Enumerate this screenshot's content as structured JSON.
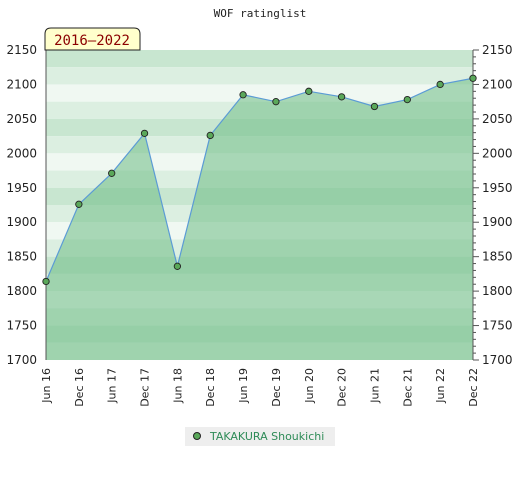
{
  "chart_data": {
    "type": "area",
    "title": "WOF ratinglist",
    "badge": "2016–2022",
    "categories": [
      "Jun 16",
      "Dec 16",
      "Jun 17",
      "Dec 17",
      "Jun 18",
      "Dec 18",
      "Jun 19",
      "Dec 19",
      "Jun 20",
      "Dec 20",
      "Jun 21",
      "Dec 21",
      "Jun 22",
      "Dec 22"
    ],
    "series": [
      {
        "name": "TAKAKURA Shoukichi",
        "values": [
          1814,
          1926,
          1971,
          2029,
          1836,
          2026,
          2085,
          2075,
          2090,
          2082,
          2068,
          2078,
          2100,
          2109
        ]
      }
    ],
    "ylim": [
      1700,
      2150
    ],
    "yticks": [
      "1700",
      "1750",
      "1800",
      "1850",
      "1900",
      "1950",
      "2000",
      "2050",
      "2100",
      "2150"
    ],
    "legend_position": "bottom-center",
    "colors": {
      "line": "#5b9bd5",
      "marker": "#5aa85a",
      "fill": "#6dbb85",
      "legend_text": "#2e8b57",
      "badge_bg": "#ffffcc",
      "badge_text": "#8b0000"
    }
  }
}
